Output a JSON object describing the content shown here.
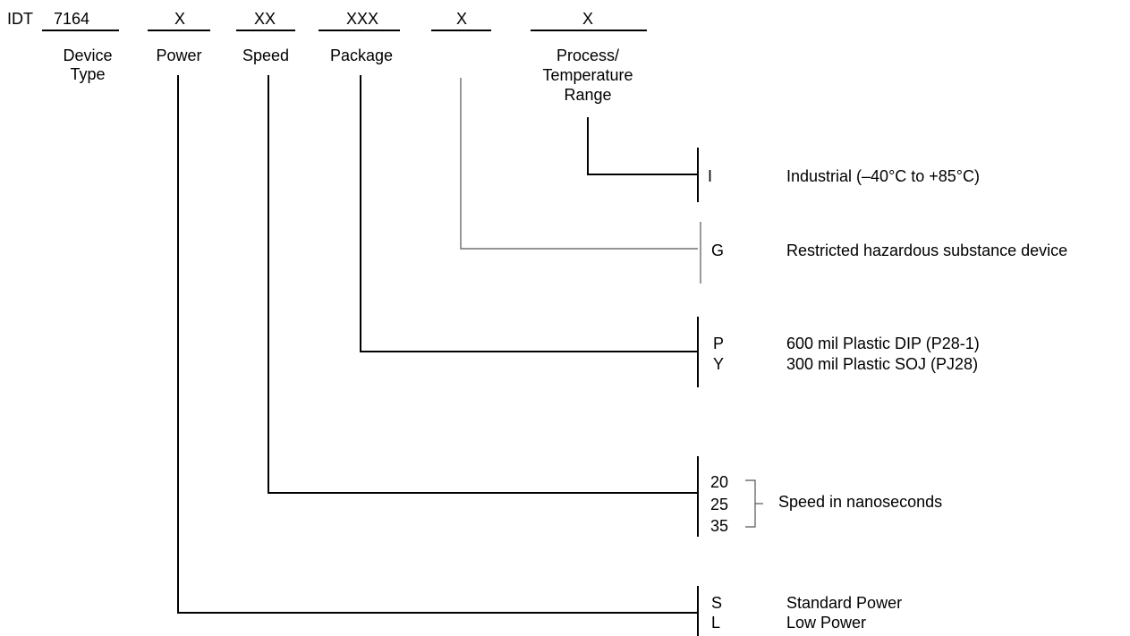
{
  "prefix": "IDT",
  "fields": [
    {
      "code": "7164",
      "label_lines": [
        "Device",
        "Type"
      ]
    },
    {
      "code": "X",
      "label_lines": [
        "Power"
      ]
    },
    {
      "code": "XX",
      "label_lines": [
        "Speed"
      ]
    },
    {
      "code": "XXX",
      "label_lines": [
        "Package"
      ]
    },
    {
      "code": "X",
      "label_lines": []
    },
    {
      "code": "X",
      "label_lines": [
        "Process/",
        "Temperature",
        "Range"
      ]
    }
  ],
  "groups": {
    "process": {
      "options": [
        {
          "code": "I",
          "desc": "Industrial (–40°C to +85°C)"
        }
      ]
    },
    "green": {
      "options": [
        {
          "code": "G",
          "desc": "Restricted hazardous substance device"
        }
      ]
    },
    "package": {
      "options": [
        {
          "code": "P",
          "desc": "600 mil  Plastic DIP (P28-1)"
        },
        {
          "code": "Y",
          "desc": "300 mil  Plastic SOJ (PJ28)"
        }
      ]
    },
    "speed": {
      "options": [
        {
          "code": "20"
        },
        {
          "code": "25"
        },
        {
          "code": "35"
        }
      ],
      "desc": "Speed in nanoseconds"
    },
    "power": {
      "options": [
        {
          "code": "S",
          "desc": "Standard Power"
        },
        {
          "code": "L",
          "desc": "Low Power"
        }
      ]
    }
  }
}
